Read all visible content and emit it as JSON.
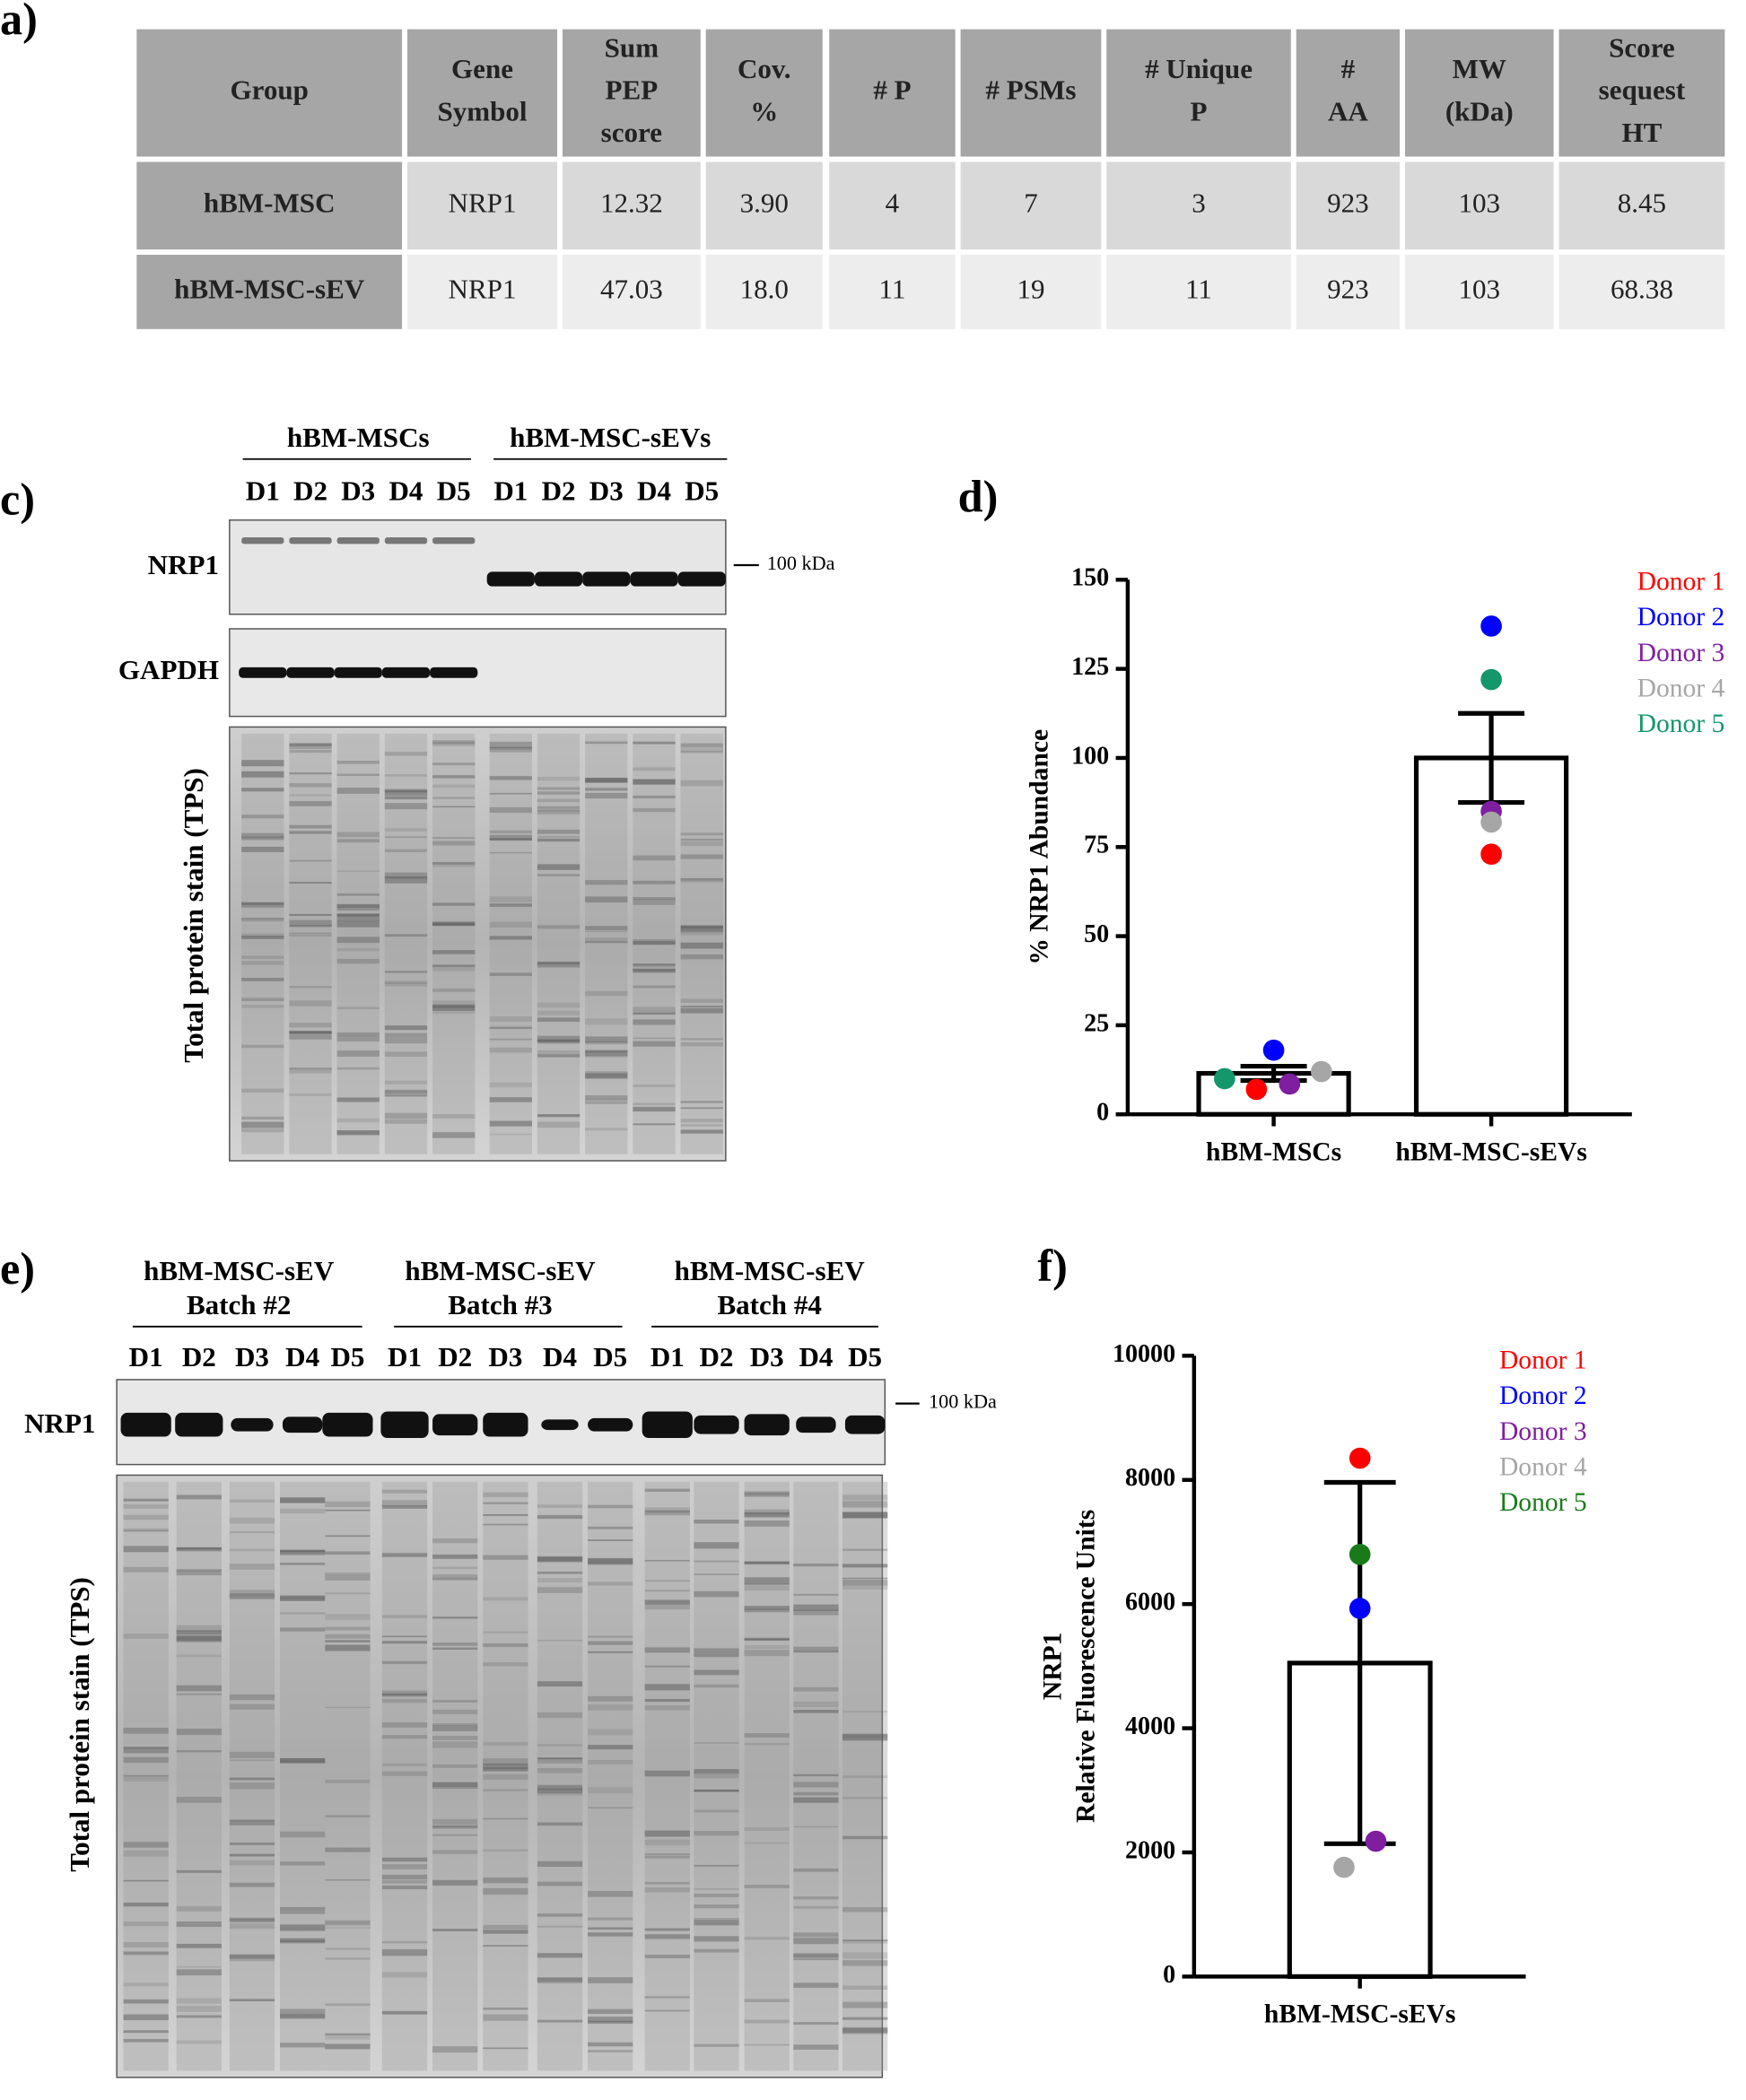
{
  "panel_labels": {
    "a": "a)",
    "c": "c)",
    "d": "d)",
    "e": "e)",
    "f": "f)"
  },
  "table": {
    "header": [
      [
        "Group"
      ],
      [
        "Gene",
        "Symbol"
      ],
      [
        "Sum",
        "PEP",
        "score"
      ],
      [
        "Cov.",
        "%"
      ],
      [
        "# P"
      ],
      [
        "# PSMs"
      ],
      [
        "# Unique",
        "P"
      ],
      [
        "#",
        "AA"
      ],
      [
        "MW",
        "(kDa)"
      ],
      [
        "Score",
        "sequest",
        "HT"
      ]
    ],
    "rows": [
      [
        "hBM-MSC",
        "NRP1",
        "12.32",
        "3.90",
        "4",
        "7",
        "3",
        "923",
        "103",
        "8.45"
      ],
      [
        "hBM-MSC-sEV",
        "NRP1",
        "47.03",
        "18.0",
        "11",
        "19",
        "11",
        "923",
        "103",
        "68.38"
      ]
    ]
  },
  "blot_c": {
    "groups": [
      "hBM-MSCs",
      "hBM-MSC-sEVs"
    ],
    "lanes": [
      "D1",
      "D2",
      "D3",
      "D4",
      "D5",
      "D1",
      "D2",
      "D3",
      "D4",
      "D5"
    ],
    "rows": [
      "NRP1",
      "GAPDH"
    ],
    "tps_label": "Total protein stain (TPS)",
    "marker": "100 kDa"
  },
  "blot_e": {
    "groups": [
      [
        "hBM-MSC-sEV",
        "Batch #2"
      ],
      [
        "hBM-MSC-sEV",
        "Batch #3"
      ],
      [
        "hBM-MSC-sEV",
        "Batch #4"
      ]
    ],
    "lanes": [
      "D1",
      "D2",
      "D3",
      "D4",
      "D5",
      "D1",
      "D2",
      "D3",
      "D4",
      "D5",
      "D1",
      "D2",
      "D3",
      "D4",
      "D5"
    ],
    "rows": [
      "NRP1"
    ],
    "tps_label": "Total protein stain (TPS)",
    "marker": "100 kDa"
  },
  "chart_data": [
    {
      "type": "bar",
      "categories": [
        "hBM-MSCs",
        "hBM-MSC-sEVs"
      ],
      "values": [
        11.5,
        100
      ],
      "errors": [
        2,
        12.5
      ],
      "y_label": [
        "% NRP1 Abundance"
      ],
      "ylim": [
        0,
        150
      ],
      "yticks": [
        0,
        25,
        50,
        75,
        100,
        125,
        150
      ],
      "legend": "top-right",
      "series": [
        {
          "name": "Donor 1",
          "color": "#ff0000",
          "values": [
            7,
            73
          ]
        },
        {
          "name": "Donor 2",
          "color": "#0000ff",
          "values": [
            18,
            137
          ]
        },
        {
          "name": "Donor 3",
          "color": "#7f1fa0",
          "values": [
            8.5,
            85
          ]
        },
        {
          "name": "Donor 4",
          "color": "#a6a6a6",
          "values": [
            12,
            82
          ]
        },
        {
          "name": "Donor 5",
          "color": "#14976a",
          "values": [
            10,
            122
          ]
        }
      ]
    },
    {
      "type": "bar",
      "categories": [
        "hBM-MSC-sEVs"
      ],
      "values": [
        5050
      ],
      "errors": [
        2910
      ],
      "y_label": [
        "NRP1",
        "Relative Fluorescence Units"
      ],
      "ylim": [
        0,
        10000
      ],
      "yticks": [
        0,
        2000,
        4000,
        6000,
        8000,
        10000
      ],
      "legend": "top-right",
      "series": [
        {
          "name": "Donor 1",
          "color": "#ff0000",
          "values": [
            8350
          ]
        },
        {
          "name": "Donor 2",
          "color": "#0000ff",
          "values": [
            5930
          ]
        },
        {
          "name": "Donor 3",
          "color": "#7f1fa0",
          "values": [
            2180
          ]
        },
        {
          "name": "Donor 4",
          "color": "#a6a6a6",
          "values": [
            1760
          ]
        },
        {
          "name": "Donor 5",
          "color": "#1a7a1a",
          "values": [
            6800
          ]
        }
      ]
    }
  ]
}
